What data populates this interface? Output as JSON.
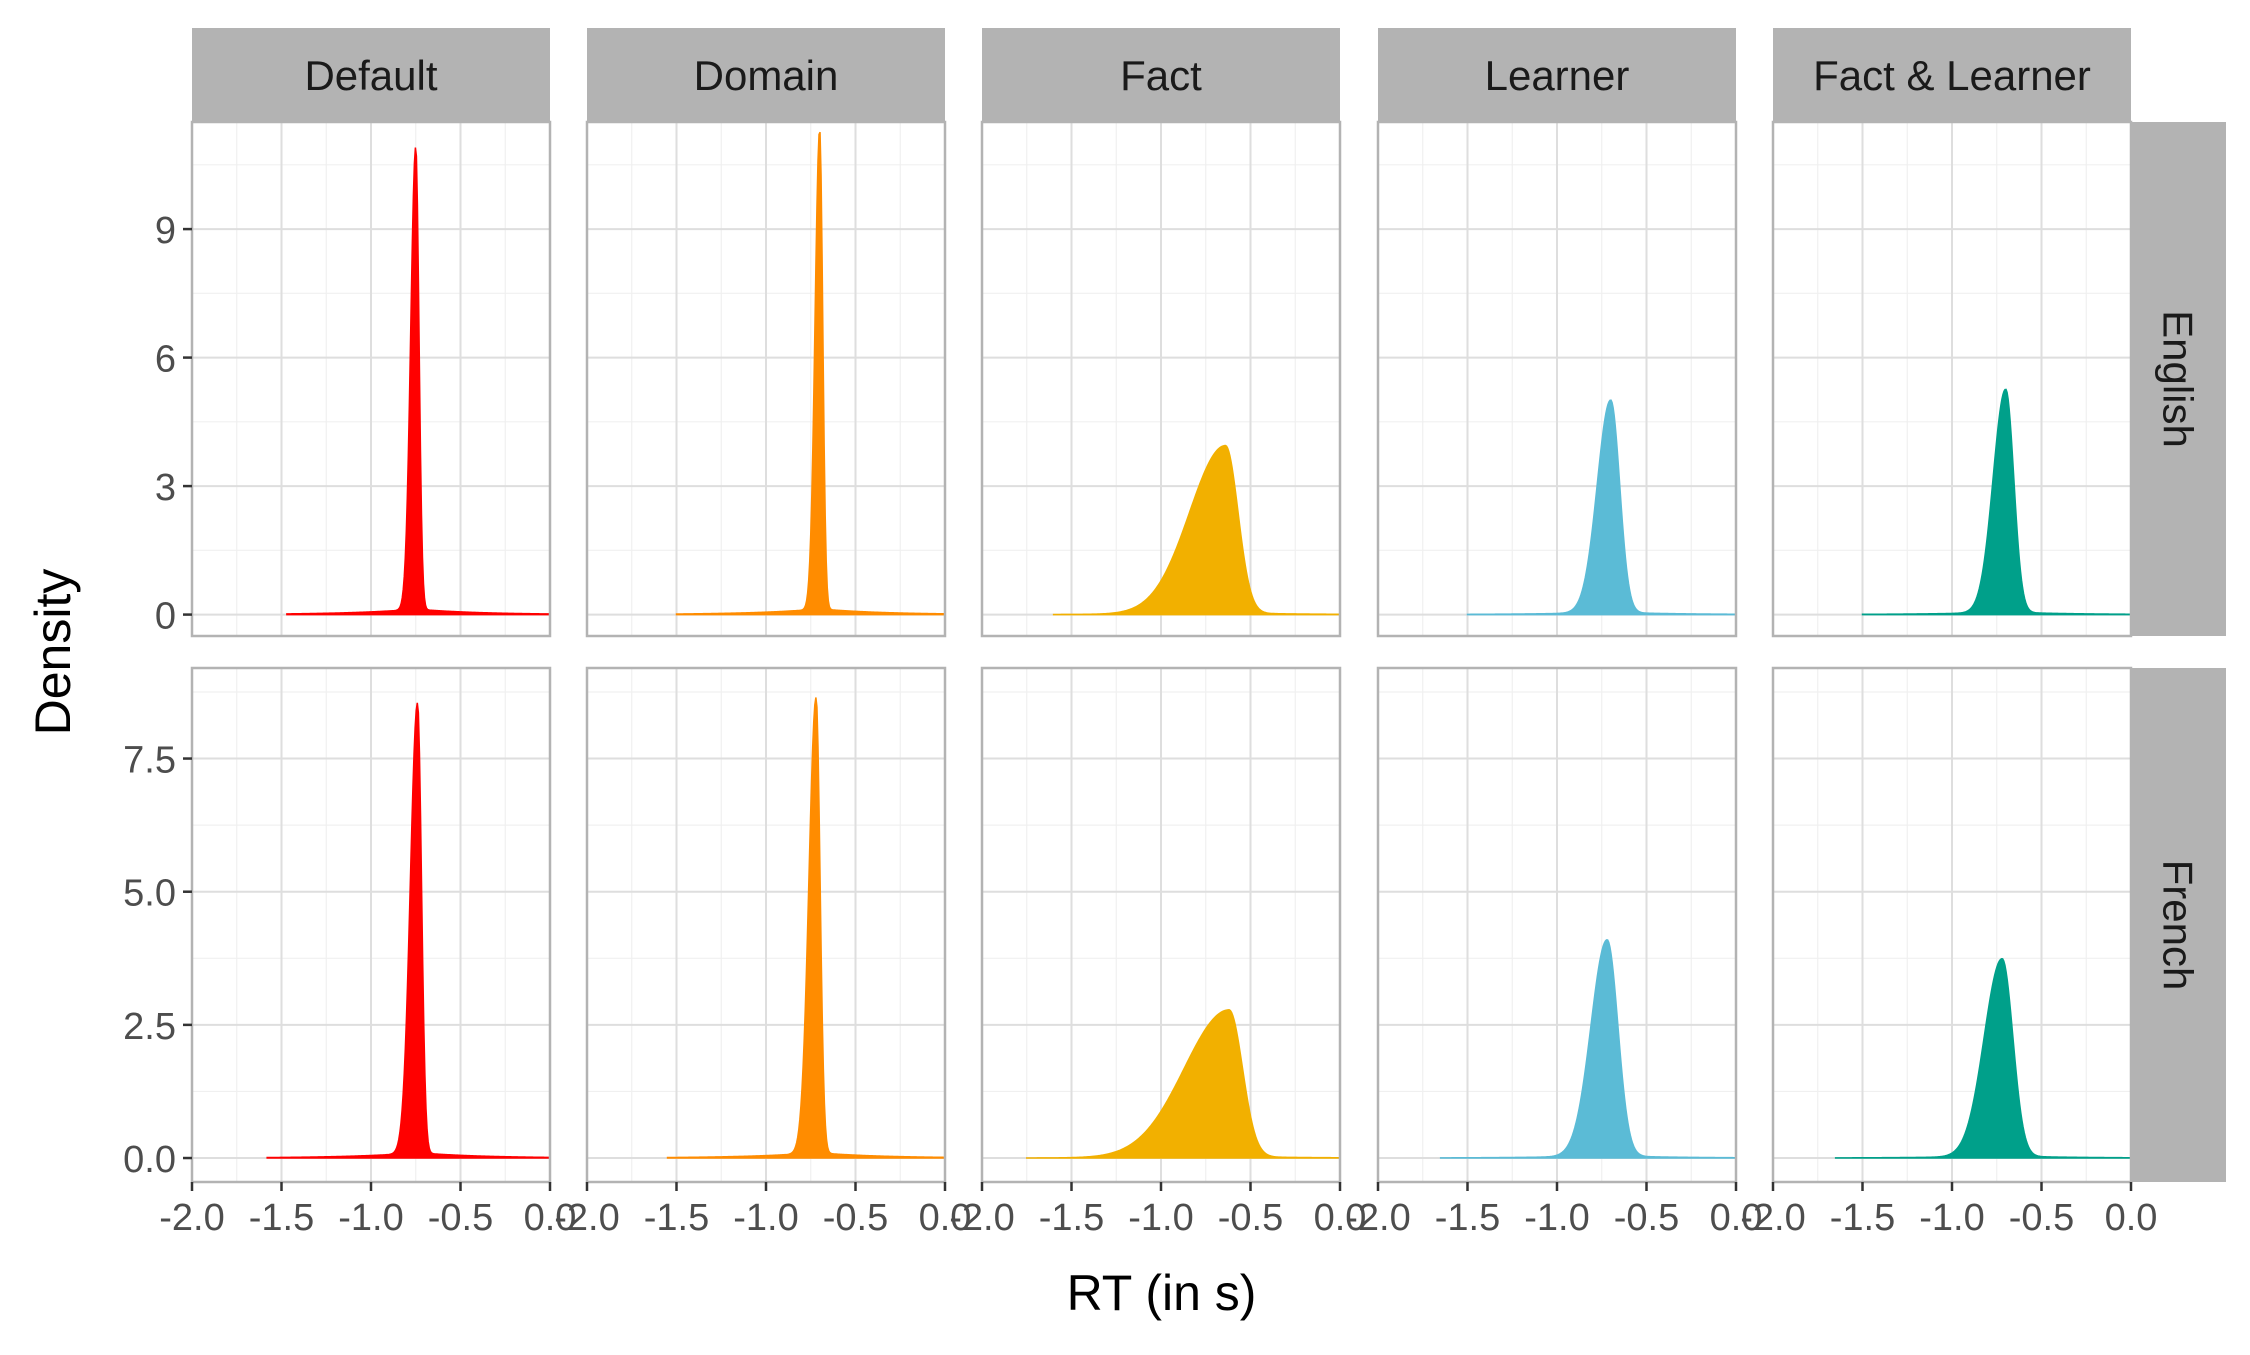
{
  "chart_data": {
    "type": "area",
    "title": "",
    "xlabel": "RT (in s)",
    "ylabel": "Density",
    "xlim": [
      -2.0,
      0.0
    ],
    "x_ticks": [
      "-2.0",
      "-1.5",
      "-1.0",
      "-0.5",
      "0.0"
    ],
    "x_tick_values": [
      -2.0,
      -1.5,
      -1.0,
      -0.5,
      0.0
    ],
    "grid": true,
    "facet_columns": [
      "Default",
      "Domain",
      "Fact",
      "Learner",
      "Fact & Learner"
    ],
    "facet_rows": [
      "English",
      "French"
    ],
    "column_colors": [
      "#ff0000",
      "#ff8c00",
      "#f2b000",
      "#5bbbd6",
      "#00a08a"
    ],
    "row_scales": [
      {
        "ylim": [
          -0.5,
          11.5
        ],
        "y_ticks": [
          "0",
          "3",
          "6",
          "9"
        ],
        "y_tick_values": [
          0,
          3,
          6,
          9
        ]
      },
      {
        "ylim": [
          -0.45,
          9.2
        ],
        "y_ticks": [
          "0.0",
          "2.5",
          "5.0",
          "7.5"
        ],
        "y_tick_values": [
          0.0,
          2.5,
          5.0,
          7.5
        ]
      }
    ],
    "series": [
      {
        "row": "English",
        "column": "Default",
        "x_range": [
          -1.47,
          0.0
        ],
        "peak_x": -0.75,
        "peak_density": 10.8,
        "sd_left": 0.028,
        "sd_right": 0.018
      },
      {
        "row": "English",
        "column": "Domain",
        "x_range": [
          -1.5,
          0.0
        ],
        "peak_x": -0.7,
        "peak_density": 11.2,
        "sd_left": 0.026,
        "sd_right": 0.017
      },
      {
        "row": "English",
        "column": "Fact",
        "x_range": [
          -1.6,
          0.0
        ],
        "peak_x": -0.64,
        "peak_density": 3.9,
        "sd_left": 0.2,
        "sd_right": 0.07
      },
      {
        "row": "English",
        "column": "Learner",
        "x_range": [
          -1.5,
          0.0
        ],
        "peak_x": -0.7,
        "peak_density": 4.95,
        "sd_left": 0.075,
        "sd_right": 0.05
      },
      {
        "row": "English",
        "column": "Fact & Learner",
        "x_range": [
          -1.5,
          0.0
        ],
        "peak_x": -0.7,
        "peak_density": 5.2,
        "sd_left": 0.07,
        "sd_right": 0.045
      },
      {
        "row": "French",
        "column": "Default",
        "x_range": [
          -1.58,
          0.0
        ],
        "peak_x": -0.74,
        "peak_density": 8.45,
        "sd_left": 0.04,
        "sd_right": 0.022
      },
      {
        "row": "French",
        "column": "Domain",
        "x_range": [
          -1.55,
          0.0
        ],
        "peak_x": -0.72,
        "peak_density": 8.55,
        "sd_left": 0.04,
        "sd_right": 0.022
      },
      {
        "row": "French",
        "column": "Fact",
        "x_range": [
          -1.75,
          0.0
        ],
        "peak_x": -0.62,
        "peak_density": 2.75,
        "sd_left": 0.25,
        "sd_right": 0.075
      },
      {
        "row": "French",
        "column": "Learner",
        "x_range": [
          -1.65,
          0.0
        ],
        "peak_x": -0.72,
        "peak_density": 4.05,
        "sd_left": 0.09,
        "sd_right": 0.06
      },
      {
        "row": "French",
        "column": "Fact & Learner",
        "x_range": [
          -1.65,
          0.0
        ],
        "peak_x": -0.72,
        "peak_density": 3.7,
        "sd_left": 0.1,
        "sd_right": 0.06
      }
    ]
  }
}
